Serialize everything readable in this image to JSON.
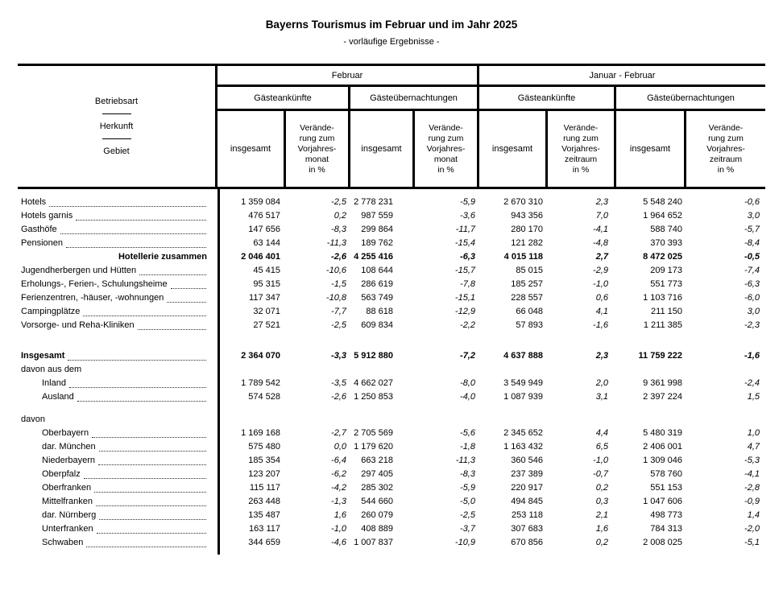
{
  "title": "Bayerns Tourismus im Februar und im Jahr 2025",
  "subtitle": "- vorläufige Ergebnisse -",
  "table": {
    "stub": {
      "line1": "Betriebsart",
      "line2": "Herkunft",
      "line3": "Gebiet"
    },
    "header": {
      "group_february": "Februar",
      "group_jan_feb": "Januar - Februar",
      "sub_arrivals": "Gästeankünfte",
      "sub_overnights": "Gästeübernachtungen",
      "insgesamt": "insgesamt",
      "change_month": "Verände-\nrung zum\nVorjahres-\nmonat\nin %",
      "change_period": "Verände-\nrung zum\nVorjahres-\nzeitraum\nin %"
    },
    "rows": [
      {
        "label": "Hotels",
        "type": "item",
        "leaders": true,
        "values": [
          "1 359 084",
          "-2,5",
          "2 778 231",
          "-5,9",
          "2 670 310",
          "2,3",
          "5 548 240",
          "-0,6"
        ]
      },
      {
        "label": "Hotels garnis",
        "type": "item",
        "leaders": true,
        "values": [
          "476 517",
          "0,2",
          "987 559",
          "-3,6",
          "943 356",
          "7,0",
          "1 964 652",
          "3,0"
        ]
      },
      {
        "label": "Gasthöfe",
        "type": "item",
        "leaders": true,
        "values": [
          "147 656",
          "-8,3",
          "299 864",
          "-11,7",
          "280 170",
          "-4,1",
          "588 740",
          "-5,7"
        ]
      },
      {
        "label": "Pensionen",
        "type": "item",
        "leaders": true,
        "values": [
          "63 144",
          "-11,3",
          "189 762",
          "-15,4",
          "121 282",
          "-4,8",
          "370 393",
          "-8,4"
        ]
      },
      {
        "label": "Hotellerie zusammen",
        "type": "sum",
        "leaders": false,
        "values": [
          "2 046 401",
          "-2,6",
          "4 255 416",
          "-6,3",
          "4 015 118",
          "2,7",
          "8 472 025",
          "-0,5"
        ]
      },
      {
        "label": "Jugendherbergen und Hütten",
        "type": "item",
        "leaders": true,
        "values": [
          "45 415",
          "-10,6",
          "108 644",
          "-15,7",
          "85 015",
          "-2,9",
          "209 173",
          "-7,4"
        ]
      },
      {
        "label": "Erholungs-, Ferien-, Schulungsheime",
        "type": "item",
        "leaders": true,
        "values": [
          "95 315",
          "-1,5",
          "286 619",
          "-7,8",
          "185 257",
          "-1,0",
          "551 773",
          "-6,3"
        ]
      },
      {
        "label": "Ferienzentren, -häuser, -wohnungen",
        "type": "item",
        "leaders": true,
        "values": [
          "117 347",
          "-10,8",
          "563 749",
          "-15,1",
          "228 557",
          "0,6",
          "1 103 716",
          "-6,0"
        ]
      },
      {
        "label": "Campingplätze",
        "type": "item",
        "leaders": true,
        "values": [
          "32 071",
          "-7,7",
          "88 618",
          "-12,9",
          "66 048",
          "4,1",
          "211 150",
          "3,0"
        ]
      },
      {
        "label": "Vorsorge- und Reha-Kliniken",
        "type": "item",
        "leaders": true,
        "values": [
          "27 521",
          "-2,5",
          "609 834",
          "-2,2",
          "57 893",
          "-1,6",
          "1 211 385",
          "-2,3"
        ]
      },
      {
        "label": "Insgesamt",
        "type": "total",
        "gap": "large",
        "leaders": true,
        "values": [
          "2 364 070",
          "-3,3",
          "5 912 880",
          "-7,2",
          "4 637 888",
          "2,3",
          "11 759 222",
          "-1,6"
        ]
      },
      {
        "label": "davon aus dem",
        "type": "section",
        "leaders": false
      },
      {
        "label": "Inland",
        "type": "item",
        "indent": true,
        "leaders": true,
        "values": [
          "1 789 542",
          "-3,5",
          "4 662 027",
          "-8,0",
          "3 549 949",
          "2,0",
          "9 361 998",
          "-2,4"
        ]
      },
      {
        "label": "Ausland",
        "type": "item",
        "indent": true,
        "leaders": true,
        "values": [
          "574 528",
          "-2,6",
          "1 250 853",
          "-4,0",
          "1 087 939",
          "3,1",
          "2 397 224",
          "1,5"
        ]
      },
      {
        "label": "davon",
        "type": "section",
        "gap": "small",
        "leaders": false
      },
      {
        "label": "Oberbayern",
        "type": "item",
        "indent": true,
        "leaders": true,
        "values": [
          "1 169 168",
          "-2,7",
          "2 705 569",
          "-5,6",
          "2 345 652",
          "4,4",
          "5 480 319",
          "1,0"
        ]
      },
      {
        "label": "dar.  München",
        "type": "item",
        "indent": true,
        "leaders": true,
        "values": [
          "575 480",
          "0,0",
          "1 179 620",
          "-1,8",
          "1 163 432",
          "6,5",
          "2 406 001",
          "4,7"
        ]
      },
      {
        "label": "Niederbayern",
        "type": "item",
        "indent": true,
        "leaders": true,
        "values": [
          "185 354",
          "-6,4",
          "663 218",
          "-11,3",
          "360 546",
          "-1,0",
          "1 309 046",
          "-5,3"
        ]
      },
      {
        "label": "Oberpfalz",
        "type": "item",
        "indent": true,
        "leaders": true,
        "values": [
          "123 207",
          "-6,2",
          "297 405",
          "-8,3",
          "237 389",
          "-0,7",
          "578 760",
          "-4,1"
        ]
      },
      {
        "label": "Oberfranken",
        "type": "item",
        "indent": true,
        "leaders": true,
        "values": [
          "115 117",
          "-4,2",
          "285 302",
          "-5,9",
          "220 917",
          "0,2",
          "551 153",
          "-2,8"
        ]
      },
      {
        "label": "Mittelfranken",
        "type": "item",
        "indent": true,
        "leaders": true,
        "values": [
          "263 448",
          "-1,3",
          "544 660",
          "-5,0",
          "494 845",
          "0,3",
          "1 047 606",
          "-0,9"
        ]
      },
      {
        "label": "dar.  Nürnberg",
        "type": "item",
        "indent": true,
        "leaders": true,
        "values": [
          "135 487",
          "1,6",
          "260 079",
          "-2,5",
          "253 118",
          "2,1",
          "498 773",
          "1,4"
        ]
      },
      {
        "label": "Unterfranken",
        "type": "item",
        "indent": true,
        "leaders": true,
        "values": [
          "163 117",
          "-1,0",
          "408 889",
          "-3,7",
          "307 683",
          "1,6",
          "784 313",
          "-2,0"
        ]
      },
      {
        "label": "Schwaben",
        "type": "item",
        "indent": true,
        "leaders": true,
        "values": [
          "344 659",
          "-4,6",
          "1 007 837",
          "-10,9",
          "670 856",
          "0,2",
          "2 008 025",
          "-5,1"
        ]
      }
    ]
  }
}
